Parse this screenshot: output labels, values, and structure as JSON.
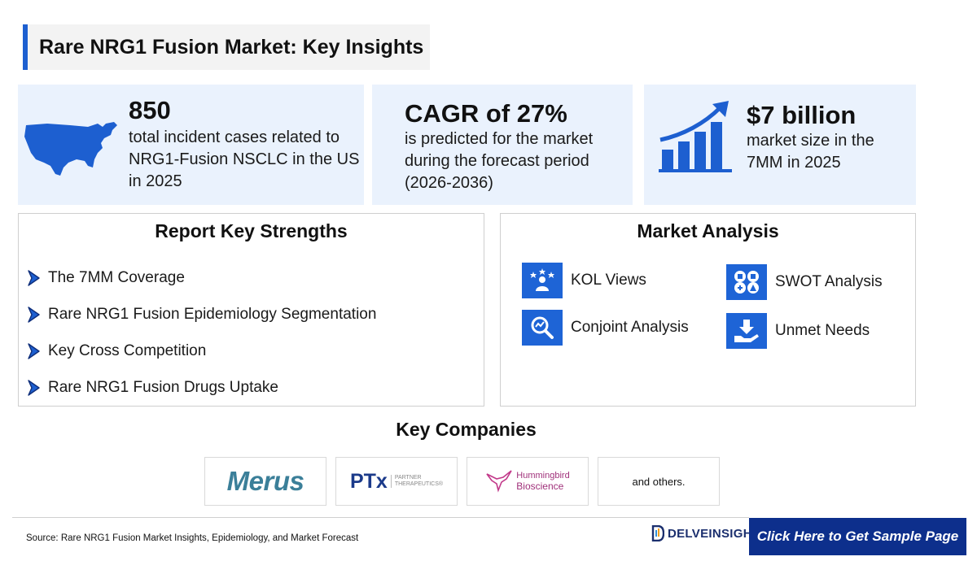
{
  "header": {
    "title": "Rare NRG1 Fusion Market: Key Insights"
  },
  "stats": {
    "us_cases": {
      "value": "850",
      "description": "total incident cases related to NRG1-Fusion NSCLC in the US in 2025",
      "icon": "us-map-icon"
    },
    "cagr": {
      "value": "CAGR of 27%",
      "description": "is predicted for the market during the forecast period (2026-2036)"
    },
    "market_size": {
      "value": "$7 billion",
      "description": "market size in the 7MM in 2025",
      "icon": "growth-chart-icon"
    }
  },
  "strengths": {
    "title": "Report Key Strengths",
    "items": [
      {
        "label": "The 7MM Coverage"
      },
      {
        "label": "Rare NRG1 Fusion Epidemiology Segmentation"
      },
      {
        "label": "Key Cross Competition"
      },
      {
        "label": "Rare NRG1 Fusion Drugs Uptake"
      }
    ]
  },
  "market_analysis": {
    "title": "Market Analysis",
    "items": [
      {
        "label": "KOL Views",
        "icon": "kol-icon"
      },
      {
        "label": "SWOT Analysis",
        "icon": "swot-icon"
      },
      {
        "label": "Conjoint Analysis",
        "icon": "conjoint-icon"
      },
      {
        "label": "Unmet Needs",
        "icon": "unmet-needs-icon"
      }
    ]
  },
  "companies": {
    "title": "Key Companies",
    "merus": "Merus",
    "ptx": {
      "main": "PTx",
      "sub_line1": "PARTNER",
      "sub_line2": "THERAPEUTICS®"
    },
    "hummingbird": {
      "line1": "Hummingbird",
      "line2": "Bioscience"
    },
    "others": "and others."
  },
  "footer": {
    "source": "Source: Rare NRG1 Fusion Market Insights, Epidemiology, and Market Forecast",
    "brand": "DELVEINSIGHT",
    "cta": "Click Here to Get Sample Page"
  },
  "colors": {
    "accent": "#1e64d6",
    "card_bg": "#eaf2fd",
    "cta_bg": "#0d2f8c",
    "icon_blue": "#1d5fd0"
  }
}
